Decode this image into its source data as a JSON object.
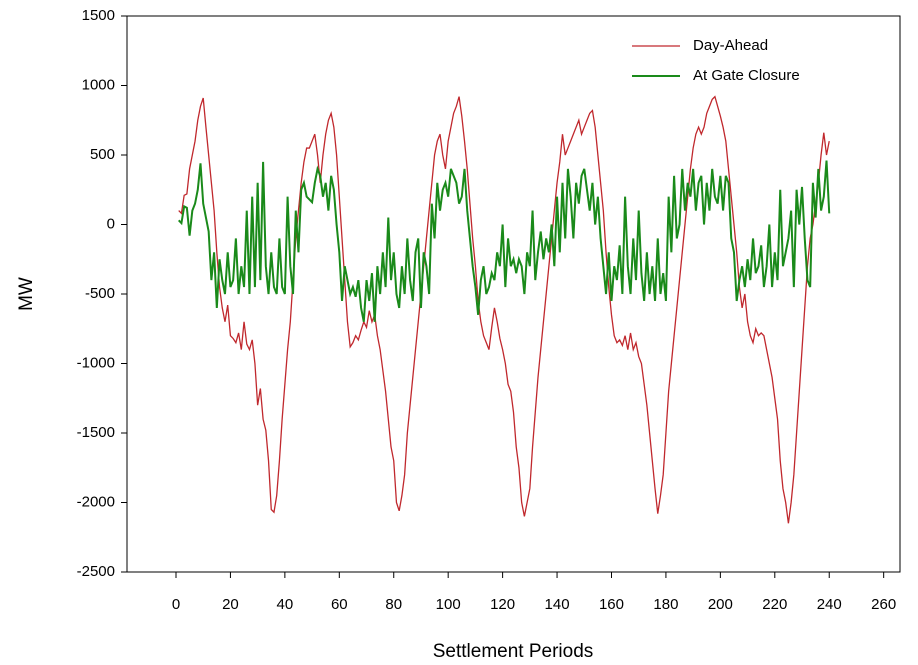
{
  "chart_data": {
    "type": "line",
    "x_label": "Settlement Periods",
    "y_label": "MW",
    "legend": "upper right",
    "xlim": [
      -18,
      266
    ],
    "xticks": [
      0,
      20,
      40,
      60,
      80,
      100,
      120,
      140,
      160,
      180,
      200,
      220,
      240,
      260
    ],
    "ylim": [
      -2500,
      1500
    ],
    "yticks": [
      -2500,
      -2000,
      -1500,
      -1000,
      -500,
      0,
      500,
      1000,
      1500
    ],
    "x": [
      1,
      2,
      3,
      4,
      5,
      6,
      7,
      8,
      9,
      10,
      11,
      12,
      13,
      14,
      15,
      16,
      17,
      18,
      19,
      20,
      21,
      22,
      23,
      24,
      25,
      26,
      27,
      28,
      29,
      30,
      31,
      32,
      33,
      34,
      35,
      36,
      37,
      38,
      39,
      40,
      41,
      42,
      43,
      44,
      45,
      46,
      47,
      48,
      49,
      50,
      51,
      52,
      53,
      54,
      55,
      56,
      57,
      58,
      59,
      60,
      61,
      62,
      63,
      64,
      65,
      66,
      67,
      68,
      69,
      70,
      71,
      72,
      73,
      74,
      75,
      76,
      77,
      78,
      79,
      80,
      81,
      82,
      83,
      84,
      85,
      86,
      87,
      88,
      89,
      90,
      91,
      92,
      93,
      94,
      95,
      96,
      97,
      98,
      99,
      100,
      101,
      102,
      103,
      104,
      105,
      106,
      107,
      108,
      109,
      110,
      111,
      112,
      113,
      114,
      115,
      116,
      117,
      118,
      119,
      120,
      121,
      122,
      123,
      124,
      125,
      126,
      127,
      128,
      129,
      130,
      131,
      132,
      133,
      134,
      135,
      136,
      137,
      138,
      139,
      140,
      141,
      142,
      143,
      144,
      145,
      146,
      147,
      148,
      149,
      150,
      151,
      152,
      153,
      154,
      155,
      156,
      157,
      158,
      159,
      160,
      161,
      162,
      163,
      164,
      165,
      166,
      167,
      168,
      169,
      170,
      171,
      172,
      173,
      174,
      175,
      176,
      177,
      178,
      179,
      180,
      181,
      182,
      183,
      184,
      185,
      186,
      187,
      188,
      189,
      190,
      191,
      192,
      193,
      194,
      195,
      196,
      197,
      198,
      199,
      200,
      201,
      202,
      203,
      204,
      205,
      206,
      207,
      208,
      209,
      210,
      211,
      212,
      213,
      214,
      215,
      216,
      217,
      218,
      219,
      220,
      221,
      222,
      223,
      224,
      225,
      226,
      227,
      228,
      229,
      230,
      231,
      232,
      233,
      234,
      235,
      236,
      237,
      238,
      239,
      240
    ],
    "series": [
      {
        "name": "Day-Ahead",
        "color": "#c0282d",
        "values": [
          100,
          80,
          210,
          220,
          400,
          500,
          600,
          750,
          850,
          910,
          700,
          500,
          300,
          100,
          -200,
          -450,
          -600,
          -700,
          -580,
          -800,
          -820,
          -850,
          -780,
          -900,
          -700,
          -860,
          -900,
          -830,
          -1000,
          -1300,
          -1180,
          -1400,
          -1480,
          -1700,
          -2050,
          -2070,
          -1950,
          -1700,
          -1400,
          -1150,
          -900,
          -700,
          -400,
          -100,
          100,
          300,
          450,
          550,
          550,
          600,
          650,
          500,
          300,
          500,
          650,
          750,
          800,
          700,
          500,
          200,
          -100,
          -400,
          -700,
          -880,
          -850,
          -800,
          -830,
          -760,
          -700,
          -740,
          -620,
          -700,
          -650,
          -800,
          -900,
          -1050,
          -1200,
          -1400,
          -1600,
          -1700,
          -2000,
          -2060,
          -1950,
          -1800,
          -1500,
          -1300,
          -1100,
          -900,
          -700,
          -500,
          -300,
          -100,
          100,
          300,
          500,
          600,
          650,
          500,
          400,
          600,
          700,
          800,
          850,
          920,
          780,
          600,
          400,
          150,
          -100,
          -300,
          -550,
          -700,
          -800,
          -850,
          -900,
          -740,
          -600,
          -700,
          -820,
          -900,
          -1000,
          -1150,
          -1200,
          -1350,
          -1600,
          -1750,
          -2000,
          -2100,
          -2000,
          -1900,
          -1600,
          -1350,
          -1100,
          -900,
          -700,
          -500,
          -300,
          -100,
          100,
          300,
          450,
          650,
          500,
          550,
          600,
          650,
          700,
          750,
          650,
          700,
          750,
          800,
          820,
          700,
          500,
          300,
          100,
          -200,
          -450,
          -650,
          -800,
          -850,
          -830,
          -870,
          -800,
          -900,
          -780,
          -900,
          -850,
          -950,
          -1000,
          -1150,
          -1300,
          -1500,
          -1700,
          -1900,
          -2080,
          -1950,
          -1800,
          -1500,
          -1200,
          -1000,
          -800,
          -600,
          -400,
          -200,
          0,
          200,
          400,
          550,
          650,
          700,
          650,
          700,
          800,
          850,
          900,
          920,
          850,
          780,
          700,
          600,
          400,
          200,
          0,
          -200,
          -450,
          -600,
          -500,
          -700,
          -800,
          -850,
          -750,
          -800,
          -780,
          -800,
          -900,
          -1000,
          -1100,
          -1250,
          -1400,
          -1700,
          -1900,
          -2000,
          -2150,
          -2000,
          -1800,
          -1500,
          -1200,
          -900,
          -600,
          -300,
          -100,
          0,
          150,
          300,
          500,
          660,
          500,
          600
        ]
      },
      {
        "name": "At Gate Closure",
        "color": "#1a8a1a",
        "values": [
          30,
          10,
          130,
          120,
          -80,
          100,
          150,
          250,
          440,
          150,
          50,
          -50,
          -400,
          -200,
          -600,
          -250,
          -400,
          -500,
          -200,
          -450,
          -400,
          -100,
          -500,
          -300,
          -450,
          100,
          -500,
          200,
          -450,
          300,
          -400,
          450,
          -300,
          -500,
          -200,
          -450,
          -500,
          -100,
          -450,
          -500,
          200,
          -300,
          -500,
          100,
          -200,
          250,
          300,
          200,
          180,
          160,
          300,
          400,
          350,
          200,
          300,
          100,
          350,
          250,
          0,
          -200,
          -550,
          -300,
          -400,
          -500,
          -450,
          -520,
          -400,
          -600,
          -700,
          -400,
          -550,
          -350,
          -700,
          -300,
          -500,
          -200,
          -450,
          50,
          -400,
          -200,
          -500,
          -600,
          -300,
          -500,
          -100,
          -400,
          -550,
          -200,
          -100,
          -600,
          -200,
          -300,
          -500,
          150,
          -100,
          300,
          100,
          250,
          300,
          200,
          400,
          350,
          300,
          150,
          200,
          400,
          100,
          -100,
          -300,
          -450,
          -650,
          -400,
          -300,
          -500,
          -450,
          -350,
          -400,
          -200,
          -300,
          0,
          -450,
          -100,
          -300,
          -250,
          -350,
          -250,
          -300,
          -500,
          -200,
          -300,
          100,
          -400,
          -200,
          -50,
          -250,
          -100,
          -200,
          0,
          -300,
          200,
          -200,
          300,
          -100,
          400,
          200,
          -100,
          300,
          150,
          350,
          400,
          250,
          100,
          300,
          0,
          200,
          -100,
          -300,
          -500,
          -200,
          -550,
          -300,
          -400,
          -150,
          -500,
          200,
          -300,
          -500,
          -100,
          -400,
          100,
          -350,
          -550,
          -200,
          -500,
          -300,
          -550,
          -100,
          -500,
          -350,
          -550,
          200,
          -200,
          350,
          -100,
          0,
          400,
          100,
          300,
          200,
          400,
          100,
          300,
          350,
          0,
          300,
          100,
          400,
          200,
          150,
          350,
          100,
          350,
          300,
          -100,
          -200,
          -550,
          -400,
          -300,
          -450,
          -250,
          -400,
          -100,
          -350,
          -300,
          -150,
          -450,
          -300,
          0,
          -450,
          -200,
          -400,
          250,
          -300,
          -200,
          -100,
          100,
          -450,
          250,
          0,
          270,
          -100,
          -400,
          -450,
          300,
          50,
          400,
          100,
          200,
          460,
          80
        ]
      }
    ]
  }
}
